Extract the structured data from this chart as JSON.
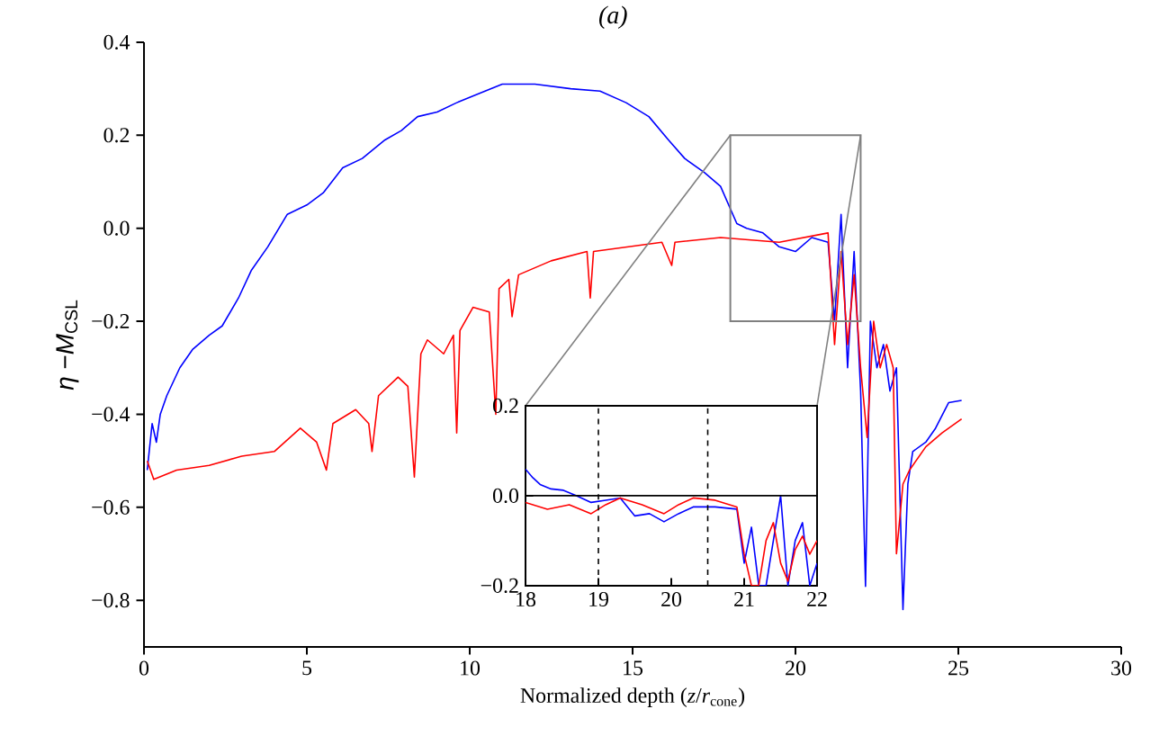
{
  "chart_data": [
    {
      "type": "line",
      "title": "(a)",
      "xlabel": "Normalized depth (*z*/*r*$_{cone}$)",
      "ylabel": "*η* −*M*$_{CSL}$",
      "xlim": [
        0,
        30
      ],
      "ylim": [
        -0.9,
        0.4
      ],
      "xticks": [
        0,
        5,
        10,
        15,
        20,
        25,
        30
      ],
      "yticks": [
        {
          "value": -0.8,
          "label": "−0.8"
        },
        {
          "value": -0.6,
          "label": "−0.6"
        },
        {
          "value": -0.4,
          "label": "−0.4"
        },
        {
          "value": -0.2,
          "label": "−0.2"
        },
        {
          "value": 0,
          "label": "0.0"
        },
        {
          "value": 0.2,
          "label": "0.2"
        },
        {
          "value": 0.4,
          "label": "0.4"
        }
      ],
      "series": [
        {
          "color": "#0000ff",
          "x": [
            0.1,
            0.25,
            0.38,
            0.5,
            0.7,
            0.9,
            1.1,
            1.5,
            2.0,
            2.4,
            2.9,
            3.3,
            3.8,
            4.4,
            5.0,
            5.5,
            6.1,
            6.7,
            7.4,
            7.9,
            8.4,
            9.0,
            9.6,
            10.3,
            11.0,
            12.0,
            13.1,
            14.0,
            14.8,
            15.5,
            16.1,
            16.6,
            17.2,
            17.7,
            18.2,
            18.5,
            19.0,
            19.5,
            20.0,
            20.5,
            21.0,
            21.2,
            21.4,
            21.6,
            21.8,
            22.0,
            22.15,
            22.3,
            22.5,
            22.7,
            22.9,
            23.1,
            23.3,
            23.45,
            23.6,
            24.0,
            24.3,
            24.7,
            25.1
          ],
          "values": [
            -0.52,
            -0.42,
            -0.46,
            -0.4,
            -0.36,
            -0.33,
            -0.3,
            -0.26,
            -0.23,
            -0.21,
            -0.15,
            -0.09,
            -0.04,
            0.03,
            0.05,
            0.076,
            0.13,
            0.15,
            0.19,
            0.21,
            0.24,
            0.25,
            0.27,
            0.29,
            0.31,
            0.31,
            0.3,
            0.295,
            0.27,
            0.24,
            0.19,
            0.15,
            0.12,
            0.09,
            0.01,
            0.0,
            -0.01,
            -0.04,
            -0.05,
            -0.02,
            -0.03,
            -0.2,
            0.03,
            -0.3,
            -0.05,
            -0.35,
            -0.77,
            -0.2,
            -0.3,
            -0.25,
            -0.35,
            -0.3,
            -0.82,
            -0.55,
            -0.48,
            -0.46,
            -0.43,
            -0.375,
            -0.37
          ]
        },
        {
          "color": "#ff0000",
          "x": [
            0.1,
            0.3,
            1.0,
            2.0,
            3.0,
            4.0,
            4.8,
            5.3,
            5.6,
            5.8,
            6.5,
            6.9,
            7.0,
            7.2,
            7.8,
            8.1,
            8.3,
            8.5,
            8.7,
            9.2,
            9.5,
            9.6,
            9.7,
            10.1,
            10.6,
            10.8,
            10.9,
            11.2,
            11.3,
            11.5,
            12.5,
            13.6,
            13.7,
            13.8,
            15.9,
            16.2,
            16.3,
            17.7,
            19.5,
            21.0,
            21.2,
            21.4,
            21.6,
            21.8,
            22.0,
            22.2,
            22.4,
            22.6,
            22.8,
            23.0,
            23.1,
            23.3,
            23.5,
            24.0,
            24.5,
            25.1
          ],
          "values": [
            -0.5,
            -0.54,
            -0.52,
            -0.51,
            -0.49,
            -0.48,
            -0.43,
            -0.46,
            -0.52,
            -0.42,
            -0.39,
            -0.42,
            -0.48,
            -0.36,
            -0.32,
            -0.34,
            -0.535,
            -0.27,
            -0.24,
            -0.27,
            -0.23,
            -0.44,
            -0.22,
            -0.17,
            -0.18,
            -0.4,
            -0.13,
            -0.11,
            -0.19,
            -0.1,
            -0.07,
            -0.05,
            -0.15,
            -0.05,
            -0.03,
            -0.08,
            -0.03,
            -0.02,
            -0.03,
            -0.01,
            -0.25,
            -0.05,
            -0.25,
            -0.1,
            -0.3,
            -0.45,
            -0.2,
            -0.3,
            -0.25,
            -0.3,
            -0.7,
            -0.55,
            -0.52,
            -0.47,
            -0.44,
            -0.41
          ]
        }
      ]
    },
    {
      "type": "line",
      "xlim": [
        18,
        22
      ],
      "ylim": [
        -0.2,
        0.2
      ],
      "xticks": [
        18,
        19,
        20,
        21,
        22
      ],
      "yticks": [
        {
          "value": -0.2,
          "label": "−0.2"
        },
        {
          "value": 0,
          "label": "0.0"
        },
        {
          "value": 0.2,
          "label": "0.2"
        }
      ],
      "ref_lines": [
        {
          "axis": "x",
          "value": 19,
          "color": "#000000",
          "line_style": "dashed"
        },
        {
          "axis": "x",
          "value": 20.5,
          "color": "#000000",
          "line_style": "dashed"
        },
        {
          "axis": "y",
          "value": 0,
          "color": "#000000",
          "line_style": "solid"
        }
      ],
      "series": [
        {
          "color": "#0000ff",
          "x": [
            18.0,
            18.1,
            18.2,
            18.35,
            18.52,
            18.7,
            18.9,
            19.1,
            19.3,
            19.5,
            19.7,
            19.9,
            20.1,
            20.3,
            20.6,
            20.9,
            21.0,
            21.1,
            21.2,
            21.3,
            21.4,
            21.5,
            21.6,
            21.7,
            21.8,
            21.9,
            22.0
          ],
          "values": [
            0.059,
            0.04,
            0.025,
            0.015,
            0.012,
            0.0,
            -0.015,
            -0.01,
            -0.005,
            -0.045,
            -0.04,
            -0.058,
            -0.04,
            -0.025,
            -0.025,
            -0.03,
            -0.15,
            -0.07,
            -0.2,
            -0.2,
            -0.1,
            0.0,
            -0.2,
            -0.1,
            -0.06,
            -0.2,
            -0.15
          ]
        },
        {
          "color": "#ff0000",
          "x": [
            18.0,
            18.3,
            18.6,
            18.9,
            19.1,
            19.3,
            19.6,
            19.9,
            20.1,
            20.3,
            20.6,
            20.9,
            21.0,
            21.1,
            21.2,
            21.3,
            21.4,
            21.5,
            21.6,
            21.7,
            21.8,
            21.9,
            22.0
          ],
          "values": [
            -0.015,
            -0.03,
            -0.02,
            -0.04,
            -0.02,
            -0.005,
            -0.02,
            -0.04,
            -0.02,
            -0.005,
            -0.01,
            -0.025,
            -0.13,
            -0.2,
            -0.2,
            -0.1,
            -0.06,
            -0.15,
            -0.19,
            -0.12,
            -0.09,
            -0.13,
            -0.1
          ]
        }
      ]
    }
  ]
}
